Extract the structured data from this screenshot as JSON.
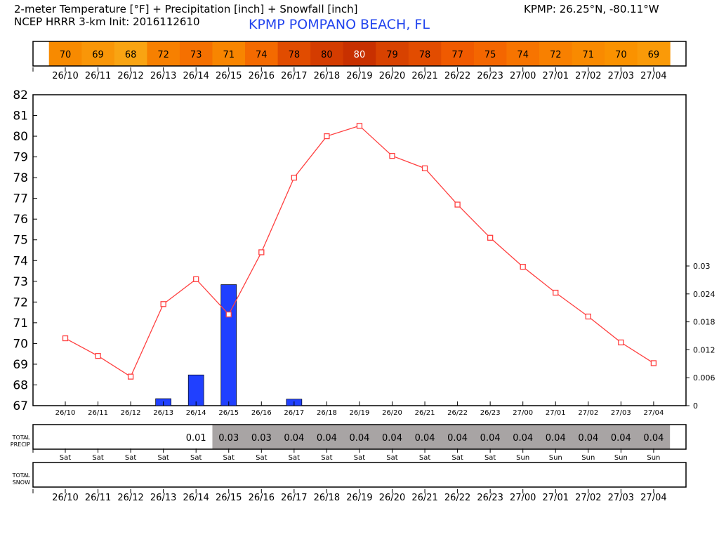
{
  "header": {
    "title_line1": "2-meter Temperature [°F] + Precipitation [inch] + Snowfall [inch]",
    "title_line2": "NCEP HRRR 3-km Init: 2016112610",
    "station": "KPMP POMPANO BEACH, FL",
    "coords": "KPMP: 26.25°N, -80.11°W"
  },
  "chart_data": {
    "type": "line",
    "categories": [
      "26/10",
      "26/11",
      "26/12",
      "26/13",
      "26/14",
      "26/15",
      "26/16",
      "26/17",
      "26/18",
      "26/19",
      "26/20",
      "26/21",
      "26/22",
      "26/23",
      "27/00",
      "27/01",
      "27/02",
      "27/03",
      "27/04"
    ],
    "temp_labels": [
      "70",
      "69",
      "68",
      "72",
      "73",
      "71",
      "74",
      "78",
      "80",
      "80",
      "79",
      "78",
      "77",
      "75",
      "74",
      "72",
      "71",
      "70",
      "69"
    ],
    "temp_colors": [
      "#f78a00",
      "#f99608",
      "#f9a412",
      "#f78000",
      "#f57000",
      "#f88500",
      "#f46a00",
      "#e14c00",
      "#d43c00",
      "#c83000",
      "#d84200",
      "#e24c00",
      "#f05a00",
      "#f46600",
      "#f77400",
      "#f88000",
      "#f98a00",
      "#fa9200",
      "#fa9a08"
    ],
    "series": [
      {
        "name": "2-meter Temperature [°F]",
        "axis": "left",
        "color": "#ff4040",
        "values": [
          70.25,
          69.4,
          68.4,
          71.9,
          73.1,
          71.4,
          74.4,
          78.0,
          80.0,
          80.5,
          79.05,
          78.45,
          76.7,
          75.1,
          73.7,
          72.45,
          71.3,
          70.05,
          69.05
        ]
      },
      {
        "name": "Precipitation [inch]",
        "axis": "right",
        "type": "bar",
        "color": "#2040ff",
        "values": [
          0,
          0,
          0,
          0.0015,
          0.0066,
          0.026,
          0,
          0.0014,
          0,
          0,
          0,
          0,
          0,
          0,
          0,
          0,
          0,
          0,
          0
        ]
      }
    ],
    "ylim": [
      67,
      82
    ],
    "yticks": [
      "67",
      "68",
      "69",
      "70",
      "71",
      "72",
      "73",
      "74",
      "75",
      "76",
      "77",
      "78",
      "79",
      "80",
      "81",
      "82"
    ],
    "y2lim": [
      0,
      0.036
    ],
    "y2ticks": [
      "0",
      "0.006",
      "0.012",
      "0.018",
      "0.024",
      "0.03"
    ],
    "total_precip_label": [
      "TOTAL",
      "PRECIP"
    ],
    "total_precip": [
      "",
      "",
      "",
      "",
      "0.01",
      "0.03",
      "0.03",
      "0.04",
      "0.04",
      "0.04",
      "0.04",
      "0.04",
      "0.04",
      "0.04",
      "0.04",
      "0.04",
      "0.04",
      "0.04",
      "0.04"
    ],
    "days": [
      "Sat",
      "Sat",
      "Sat",
      "Sat",
      "Sat",
      "Sat",
      "Sat",
      "Sat",
      "Sat",
      "Sat",
      "Sat",
      "Sat",
      "Sat",
      "Sat",
      "Sun",
      "Sun",
      "Sun",
      "Sun",
      "Sun"
    ],
    "total_snow_label": [
      "TOTAL",
      "SNOW"
    ],
    "precip_shade": "#a8a4a4"
  }
}
